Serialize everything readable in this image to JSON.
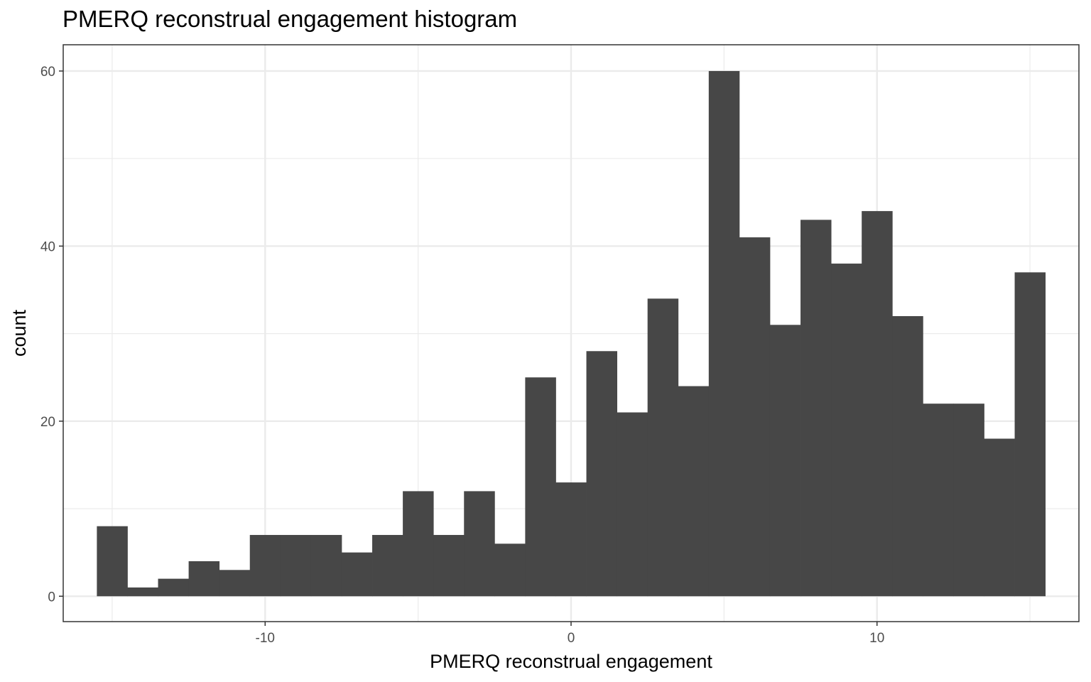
{
  "chart_data": {
    "type": "bar",
    "title": "PMERQ reconstrual engagement histogram",
    "xlabel": "PMERQ reconstrual engagement",
    "ylabel": "count",
    "bin_width": 1,
    "x": [
      -15,
      -14,
      -13,
      -12,
      -11,
      -10,
      -9,
      -8,
      -7,
      -6,
      -5,
      -4,
      -3,
      -2,
      -1,
      0,
      1,
      2,
      3,
      4,
      5,
      6,
      7,
      8,
      9,
      10,
      11,
      12,
      13,
      14,
      15
    ],
    "values": [
      8,
      1,
      2,
      4,
      3,
      7,
      7,
      7,
      5,
      7,
      12,
      7,
      12,
      6,
      25,
      13,
      28,
      21,
      34,
      24,
      60,
      41,
      31,
      43,
      38,
      44,
      32,
      22,
      22,
      18,
      37
    ],
    "xlim": [
      -16.6,
      16.6
    ],
    "ylim": [
      -2.9,
      63.0
    ],
    "x_ticks": [
      -10,
      0,
      10
    ],
    "x_tick_labels": [
      "-10",
      "0",
      "10"
    ],
    "y_ticks": [
      0,
      20,
      40,
      60
    ],
    "y_tick_labels": [
      "0",
      "20",
      "40",
      "60"
    ],
    "x_minor_ticks": [
      -15,
      -5,
      5,
      15
    ],
    "y_minor_ticks": [
      10,
      30,
      50
    ],
    "grid": true,
    "bar_color": "#474747",
    "grid_color": "#ebebeb",
    "panel_border_color": "#333333"
  }
}
